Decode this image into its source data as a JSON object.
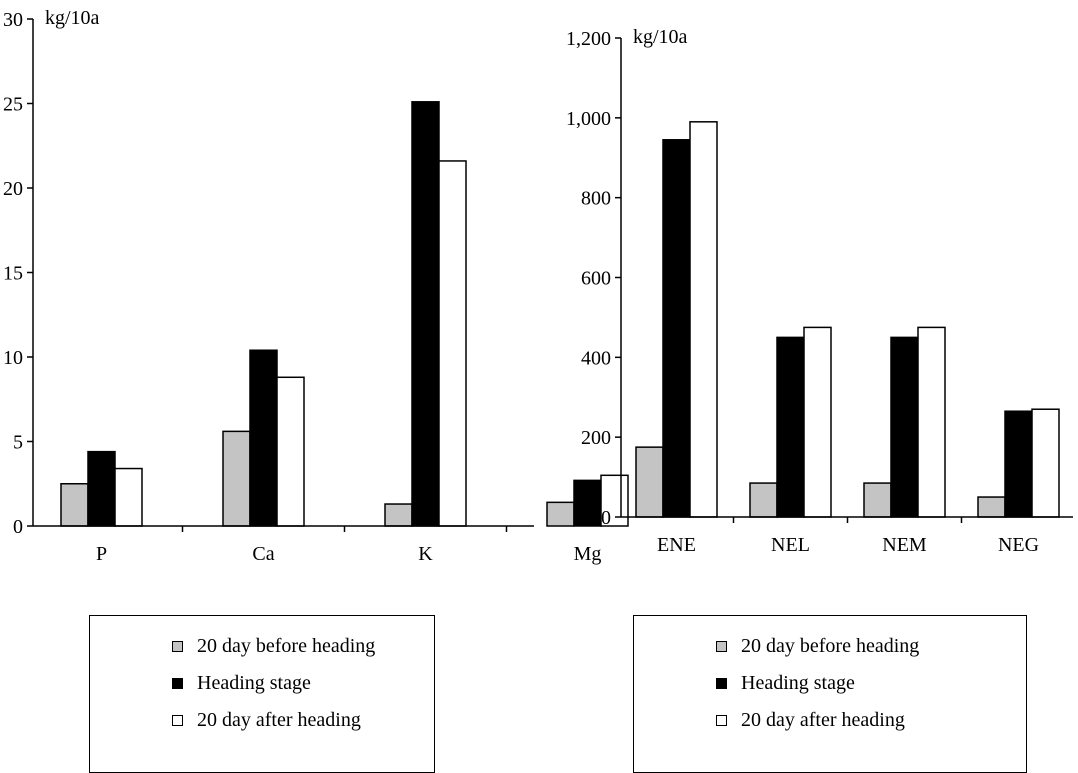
{
  "colors": {
    "before": "#c4c4c4",
    "heading": "#000000",
    "after": "#ffffff",
    "axis": "#000000"
  },
  "chart_data": [
    {
      "type": "bar",
      "ylabel": "kg/10a",
      "ylim": [
        0,
        30
      ],
      "yticks": [
        "0",
        "5",
        "10",
        "15",
        "20",
        "25",
        "30"
      ],
      "categories": [
        "P",
        "Ca",
        "K",
        "Mg"
      ],
      "series": [
        {
          "name": "20 day before heading",
          "values": [
            2.5,
            5.6,
            1.3,
            1.4
          ]
        },
        {
          "name": "Heading stage",
          "values": [
            4.4,
            10.4,
            25.1,
            2.7
          ]
        },
        {
          "name": "20 day after heading",
          "values": [
            3.4,
            8.8,
            21.6,
            3.0
          ]
        }
      ],
      "legend": "below"
    },
    {
      "type": "bar",
      "ylabel": "kg/10a",
      "ylim": [
        0,
        1200
      ],
      "yticks": [
        "0",
        "200",
        "400",
        "600",
        "800",
        "1,000",
        "1,200"
      ],
      "categories": [
        "ENE",
        "NEL",
        "NEM",
        "NEG"
      ],
      "series": [
        {
          "name": "20 day before heading",
          "values": [
            175,
            85,
            85,
            50
          ]
        },
        {
          "name": "Heading stage",
          "values": [
            945,
            450,
            450,
            265
          ]
        },
        {
          "name": "20 day after heading",
          "values": [
            990,
            475,
            475,
            270
          ]
        }
      ],
      "legend": "below"
    }
  ],
  "legends": [
    {
      "items": [
        "20 day before heading",
        "Heading stage",
        "20 day after heading"
      ]
    },
    {
      "items": [
        "20 day before heading",
        "Heading stage",
        "20 day after heading"
      ]
    }
  ]
}
